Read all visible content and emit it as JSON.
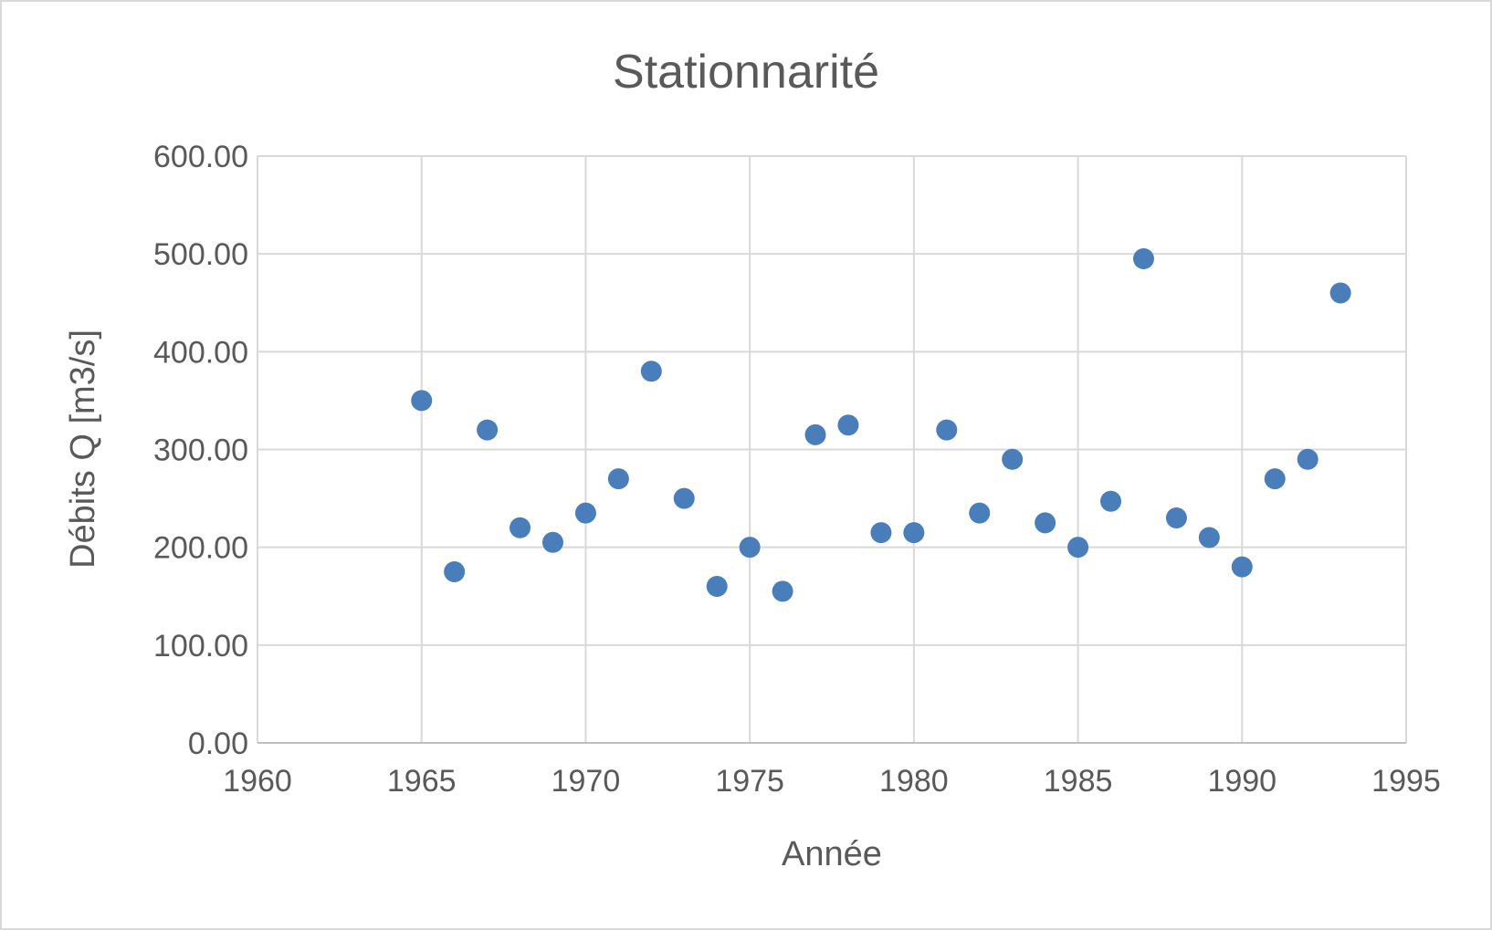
{
  "chart_data": {
    "type": "scatter",
    "title": "Stationnarité",
    "xlabel": "Année",
    "ylabel": "Débits Q [m3/s]",
    "xlim": [
      1960,
      1995
    ],
    "ylim": [
      0,
      600
    ],
    "xticks": [
      1960,
      1965,
      1970,
      1975,
      1980,
      1985,
      1990,
      1995
    ],
    "xtick_labels": [
      "1960",
      "1965",
      "1970",
      "1975",
      "1980",
      "1985",
      "1990",
      "1995"
    ],
    "yticks": [
      0,
      100,
      200,
      300,
      400,
      500,
      600
    ],
    "ytick_labels": [
      "0.00",
      "100.00",
      "200.00",
      "300.00",
      "400.00",
      "500.00",
      "600.00"
    ],
    "grid": true,
    "legend": "none",
    "marker_color": "#4a7ebb",
    "series": [
      {
        "name": "Débits",
        "x": [
          1965,
          1966,
          1967,
          1968,
          1969,
          1970,
          1971,
          1972,
          1973,
          1974,
          1975,
          1976,
          1977,
          1978,
          1979,
          1980,
          1981,
          1982,
          1983,
          1984,
          1985,
          1986,
          1987,
          1988,
          1989,
          1990,
          1991,
          1992,
          1993
        ],
        "y": [
          350,
          175,
          320,
          220,
          205,
          235,
          270,
          380,
          250,
          160,
          200,
          155,
          315,
          325,
          215,
          215,
          320,
          235,
          290,
          225,
          200,
          247,
          495,
          230,
          210,
          180,
          270,
          290,
          460
        ]
      }
    ]
  }
}
